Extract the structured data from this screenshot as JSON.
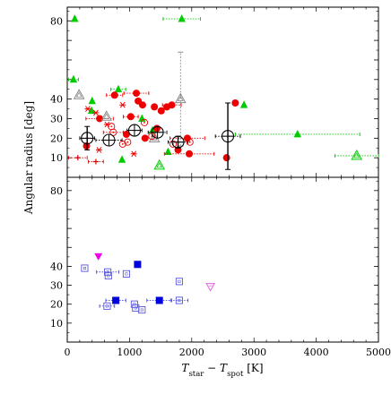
{
  "chart_data": [
    {
      "panel": "top",
      "type": "scatter",
      "ylabel": "Angular radius [deg]",
      "xlim": [
        0,
        5000
      ],
      "ylim": [
        0,
        87
      ],
      "yticks": [
        10,
        20,
        30,
        40,
        50,
        60,
        70,
        80
      ],
      "ytick_labels": [
        "10",
        "20",
        "30",
        "40",
        "",
        "",
        "",
        "80"
      ],
      "series": [
        {
          "marker": "filled-triangle",
          "color": "#00cc00",
          "errcolor": "#00cc00",
          "points": [
            {
              "x": 120,
              "y": 81
            },
            {
              "x": 100,
              "y": 50,
              "xerr": 80
            },
            {
              "x": 390,
              "y": 34
            },
            {
              "x": 400,
              "y": 39
            },
            {
              "x": 820,
              "y": 45,
              "xerr": 120
            },
            {
              "x": 880,
              "y": 9
            },
            {
              "x": 1200,
              "y": 30
            },
            {
              "x": 1370,
              "y": 24
            },
            {
              "x": 1840,
              "y": 81,
              "xerr": 300
            },
            {
              "x": 1620,
              "y": 13
            },
            {
              "x": 2840,
              "y": 37
            },
            {
              "x": 3700,
              "y": 22,
              "xerr": 1000
            }
          ]
        },
        {
          "marker": "filled-circle",
          "color": "#ee0000",
          "errcolor": "#ee0000",
          "points": [
            {
              "x": 310,
              "y": 16
            },
            {
              "x": 520,
              "y": 30,
              "xerr": 220
            },
            {
              "x": 760,
              "y": 42,
              "xerr": 130
            },
            {
              "x": 950,
              "y": 22
            },
            {
              "x": 1020,
              "y": 31,
              "xerr": 120
            },
            {
              "x": 1110,
              "y": 43,
              "xerr": 200
            },
            {
              "x": 1140,
              "y": 39
            },
            {
              "x": 1210,
              "y": 37
            },
            {
              "x": 1250,
              "y": 20
            },
            {
              "x": 1400,
              "y": 36
            },
            {
              "x": 1440,
              "y": 25
            },
            {
              "x": 1510,
              "y": 34
            },
            {
              "x": 1600,
              "y": 36
            },
            {
              "x": 1680,
              "y": 37,
              "xerr": 150
            },
            {
              "x": 1780,
              "y": 14
            },
            {
              "x": 1930,
              "y": 20,
              "xerr": 280
            },
            {
              "x": 1960,
              "y": 12,
              "xerr": 400
            },
            {
              "x": 2560,
              "y": 10
            },
            {
              "x": 2700,
              "y": 38
            }
          ]
        },
        {
          "marker": "open-triangle",
          "color": "#888888",
          "errcolor": "#888888",
          "points": [
            {
              "x": 190,
              "y": 42
            },
            {
              "x": 630,
              "y": 31
            },
            {
              "x": 1820,
              "y": 40,
              "yerr": 24
            },
            {
              "x": 1400,
              "y": 20
            }
          ]
        },
        {
          "marker": "open-triangle",
          "color": "#00cc00",
          "errcolor": "#00cc00",
          "points": [
            {
              "x": 1480,
              "y": 6
            },
            {
              "x": 4650,
              "y": 11,
              "xerr": 350
            }
          ]
        },
        {
          "marker": "circled-dot",
          "color": "#ee0000",
          "errcolor": "#ee0000",
          "points": [
            {
              "x": 710,
              "y": 26
            },
            {
              "x": 740,
              "y": 23,
              "xerr": 160
            },
            {
              "x": 890,
              "y": 17
            },
            {
              "x": 970,
              "y": 18
            },
            {
              "x": 1240,
              "y": 28
            },
            {
              "x": 1360,
              "y": 21
            },
            {
              "x": 1700,
              "y": 17
            },
            {
              "x": 1970,
              "y": 18
            }
          ]
        },
        {
          "marker": "asterisk",
          "color": "#ee0000",
          "errcolor": "#ee0000",
          "points": [
            {
              "x": 330,
              "y": 35
            },
            {
              "x": 510,
              "y": 14
            },
            {
              "x": 460,
              "y": 33
            },
            {
              "x": 640,
              "y": 27
            },
            {
              "x": 890,
              "y": 37
            },
            {
              "x": 1070,
              "y": 12
            }
          ]
        },
        {
          "marker": "plus",
          "color": "#cc0000",
          "errcolor": "#cc0000",
          "points": [
            {
              "x": 170,
              "y": 10,
              "xerr": 150
            },
            {
              "x": 460,
              "y": 8,
              "xerr": 120
            }
          ]
        },
        {
          "marker": "circled-plus",
          "color": "#000000",
          "errcolor": "#000000",
          "points": [
            {
              "x": 320,
              "y": 20,
              "xerr": 120,
              "yerr": 6
            },
            {
              "x": 670,
              "y": 19,
              "xerr": 210
            },
            {
              "x": 1080,
              "y": 24,
              "xerr": 120
            },
            {
              "x": 1450,
              "y": 23,
              "xerr": 150
            },
            {
              "x": 1780,
              "y": 18,
              "xerr": 160,
              "yerr": 3
            },
            {
              "x": 2580,
              "y": 21,
              "xerr": 200,
              "yerr": 17
            }
          ]
        }
      ]
    },
    {
      "panel": "bottom",
      "type": "scatter",
      "xlabel": "T_star − T_spot [K]",
      "ylabel": "",
      "xlim": [
        0,
        5000
      ],
      "ylim": [
        0,
        87
      ],
      "xticks": [
        0,
        1000,
        2000,
        3000,
        4000,
        5000
      ],
      "xtick_labels": [
        "0",
        "1000",
        "2000",
        "3000",
        "4000",
        "5000"
      ],
      "yticks": [
        10,
        20,
        30,
        40,
        50,
        60,
        70,
        80
      ],
      "ytick_labels": [
        "10",
        "20",
        "30",
        "40",
        "",
        "",
        "",
        "80"
      ],
      "series": [
        {
          "marker": "filled-triangle-down",
          "color": "#ee00ee",
          "errcolor": "#ee00ee",
          "points": [
            {
              "x": 500,
              "y": 45
            }
          ]
        },
        {
          "marker": "open-triangle-down",
          "color": "#dd66dd",
          "errcolor": "#dd66dd",
          "points": [
            {
              "x": 2300,
              "y": 29
            }
          ]
        },
        {
          "marker": "filled-square",
          "color": "#0000dd",
          "errcolor": "#4444ee",
          "points": [
            {
              "x": 1130,
              "y": 41
            },
            {
              "x": 780,
              "y": 22,
              "xerr": 160
            },
            {
              "x": 1480,
              "y": 22,
              "xerr": 200
            }
          ]
        },
        {
          "marker": "open-square",
          "color": "#5555dd",
          "errcolor": "#5555dd",
          "points": [
            {
              "x": 280,
              "y": 39
            },
            {
              "x": 650,
              "y": 37,
              "xerr": 180
            },
            {
              "x": 660,
              "y": 35
            },
            {
              "x": 950,
              "y": 36
            },
            {
              "x": 640,
              "y": 19,
              "xerr": 120
            },
            {
              "x": 1080,
              "y": 20
            },
            {
              "x": 1100,
              "y": 18
            },
            {
              "x": 1200,
              "y": 17
            },
            {
              "x": 1800,
              "y": 32
            },
            {
              "x": 1800,
              "y": 22,
              "xerr": 140
            }
          ]
        }
      ]
    }
  ]
}
